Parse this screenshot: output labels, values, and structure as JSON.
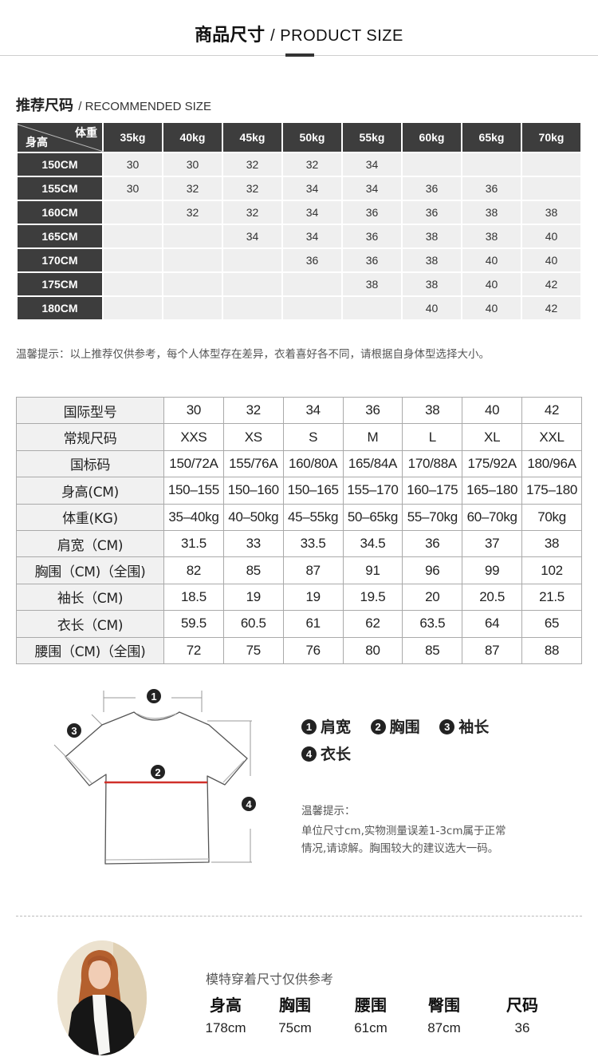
{
  "header": {
    "title_cn": "商品尺寸",
    "title_en": "/ PRODUCT SIZE"
  },
  "recommended": {
    "title_cn": "推荐尺码",
    "title_en": "/ RECOMMENDED SIZE",
    "corner_weight": "体重",
    "corner_height": "身高",
    "weights": [
      "35kg",
      "40kg",
      "45kg",
      "50kg",
      "55kg",
      "60kg",
      "65kg",
      "70kg"
    ],
    "rows": [
      {
        "height": "150CM",
        "sizes": [
          "30",
          "30",
          "32",
          "32",
          "34",
          "",
          "",
          ""
        ]
      },
      {
        "height": "155CM",
        "sizes": [
          "30",
          "32",
          "32",
          "34",
          "34",
          "36",
          "36",
          ""
        ]
      },
      {
        "height": "160CM",
        "sizes": [
          "",
          "32",
          "32",
          "34",
          "36",
          "36",
          "38",
          "38"
        ]
      },
      {
        "height": "165CM",
        "sizes": [
          "",
          "",
          "34",
          "34",
          "36",
          "38",
          "38",
          "40"
        ]
      },
      {
        "height": "170CM",
        "sizes": [
          "",
          "",
          "",
          "36",
          "36",
          "38",
          "40",
          "40"
        ]
      },
      {
        "height": "175CM",
        "sizes": [
          "",
          "",
          "",
          "",
          "38",
          "38",
          "40",
          "42"
        ]
      },
      {
        "height": "180CM",
        "sizes": [
          "",
          "",
          "",
          "",
          "",
          "40",
          "40",
          "42"
        ]
      }
    ],
    "tip": "温馨提示：以上推荐仅供参考，每个人体型存在差异，衣着喜好各不同，请根据自身体型选择大小。"
  },
  "size_chart": {
    "rows": [
      {
        "label": "国际型号",
        "values": [
          "30",
          "32",
          "34",
          "36",
          "38",
          "40",
          "42"
        ]
      },
      {
        "label": "常规尺码",
        "values": [
          "XXS",
          "XS",
          "S",
          "M",
          "L",
          "XL",
          "XXL"
        ]
      },
      {
        "label": "国标码",
        "values": [
          "150/72A",
          "155/76A",
          "160/80A",
          "165/84A",
          "170/88A",
          "175/92A",
          "180/96A"
        ]
      },
      {
        "label": "身高(CM)",
        "values": [
          "150–155",
          "150–160",
          "150–165",
          "155–170",
          "160–175",
          "165–180",
          "175–180"
        ]
      },
      {
        "label": "体重(KG)",
        "values": [
          "35–40kg",
          "40–50kg",
          "45–55kg",
          "50–65kg",
          "55–70kg",
          "60–70kg",
          "70kg"
        ]
      },
      {
        "label": "肩宽（CM)",
        "values": [
          "31.5",
          "33",
          "33.5",
          "34.5",
          "36",
          "37",
          "38"
        ]
      },
      {
        "label": "胸围（CM)（全围)",
        "values": [
          "82",
          "85",
          "87",
          "91",
          "96",
          "99",
          "102"
        ]
      },
      {
        "label": "袖长（CM)",
        "values": [
          "18.5",
          "19",
          "19",
          "19.5",
          "20",
          "20.5",
          "21.5"
        ]
      },
      {
        "label": "衣长（CM)",
        "values": [
          "59.5",
          "60.5",
          "61",
          "62",
          "63.5",
          "64",
          "65"
        ]
      },
      {
        "label": "腰围（CM)（全围)",
        "values": [
          "72",
          "75",
          "76",
          "80",
          "85",
          "87",
          "88"
        ]
      }
    ]
  },
  "diagram": {
    "legend": [
      {
        "num": "1",
        "label": "肩宽"
      },
      {
        "num": "2",
        "label": "胸围"
      },
      {
        "num": "3",
        "label": "袖长"
      },
      {
        "num": "4",
        "label": "衣长"
      }
    ],
    "chest_line_color": "#d0302a",
    "tip_title": "温馨提示：",
    "tip_line1": "单位尺寸cm,实物测量误差1-3cm属于正常",
    "tip_line2": "情况,请谅解。胸围较大的建议选大一码。"
  },
  "model": {
    "note": "模特穿着尺寸仅供参考",
    "stats": [
      {
        "label": "身高",
        "value": "178cm"
      },
      {
        "label": "胸围",
        "value": "75cm"
      },
      {
        "label": "腰围",
        "value": "61cm"
      },
      {
        "label": "臀围",
        "value": "87cm"
      },
      {
        "label": "尺码",
        "value": "36"
      }
    ]
  }
}
